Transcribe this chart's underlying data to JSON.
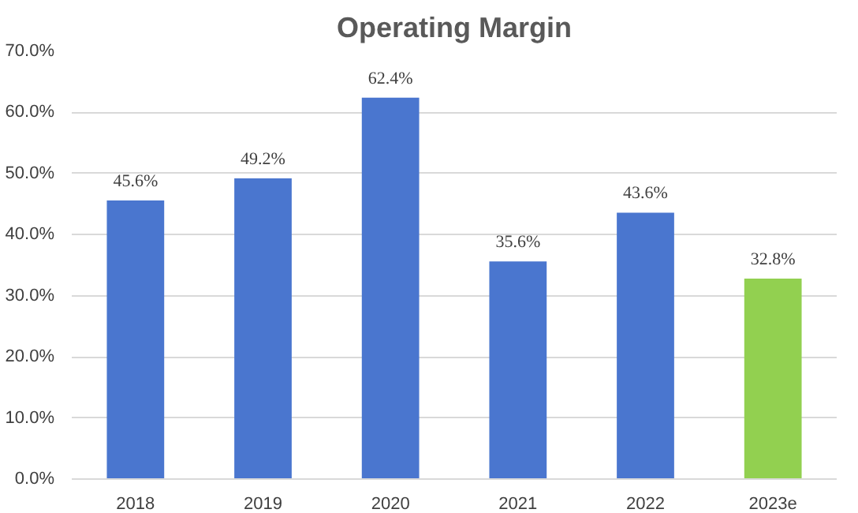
{
  "chart_data": {
    "type": "bar",
    "title": "Operating Margin",
    "categories": [
      "2018",
      "2019",
      "2020",
      "2021",
      "2022",
      "2023e"
    ],
    "values": [
      45.6,
      49.2,
      62.4,
      35.6,
      43.6,
      32.8
    ],
    "colors": [
      "#4a76cf",
      "#4a76cf",
      "#4a76cf",
      "#4a76cf",
      "#4a76cf",
      "#92d050"
    ],
    "value_labels": [
      "45.6%",
      "49.2%",
      "62.4%",
      "35.6%",
      "43.6%",
      "32.8%"
    ],
    "ylim": [
      0,
      70
    ],
    "yticks": [
      {
        "value": 0,
        "label": "0.0%"
      },
      {
        "value": 10,
        "label": "10.0%"
      },
      {
        "value": 20,
        "label": "20.0%"
      },
      {
        "value": 30,
        "label": "30.0%"
      },
      {
        "value": 40,
        "label": "40.0%"
      },
      {
        "value": 50,
        "label": "50.0%"
      },
      {
        "value": 60,
        "label": "60.0%"
      },
      {
        "value": 70,
        "label": "70.0%"
      }
    ],
    "grid": "y"
  }
}
